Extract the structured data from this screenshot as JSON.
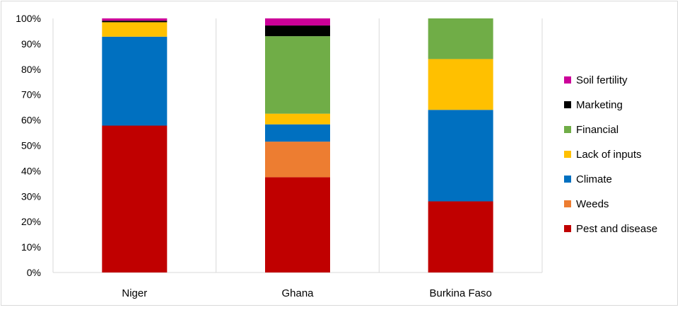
{
  "chart_data": {
    "type": "bar",
    "stacked": true,
    "percent": true,
    "categories": [
      "Niger",
      "Ghana",
      "Burkina Faso"
    ],
    "series": [
      {
        "name": "Pest and disease",
        "color": "#c00000",
        "values": [
          57.8,
          37.5,
          28.0
        ]
      },
      {
        "name": "Weeds",
        "color": "#ed7d31",
        "values": [
          0.0,
          14.0,
          0.0
        ]
      },
      {
        "name": "Climate",
        "color": "#0070c0",
        "values": [
          35.0,
          6.8,
          36.0
        ]
      },
      {
        "name": "Lack of inputs",
        "color": "#ffc000",
        "values": [
          5.7,
          4.2,
          20.0
        ]
      },
      {
        "name": "Financial",
        "color": "#70ad47",
        "values": [
          0.0,
          30.5,
          16.0
        ]
      },
      {
        "name": "Marketing",
        "color": "#000000",
        "values": [
          0.6,
          4.2,
          0.0
        ]
      },
      {
        "name": "Soil fertility",
        "color": "#cc0099",
        "values": [
          0.9,
          2.8,
          0.0
        ]
      }
    ],
    "yticks": [
      "0%",
      "10%",
      "20%",
      "30%",
      "40%",
      "50%",
      "60%",
      "70%",
      "80%",
      "90%",
      "100%"
    ],
    "ylim": [
      0,
      100
    ],
    "grid": "vertical-category-separators",
    "legend": "right"
  }
}
